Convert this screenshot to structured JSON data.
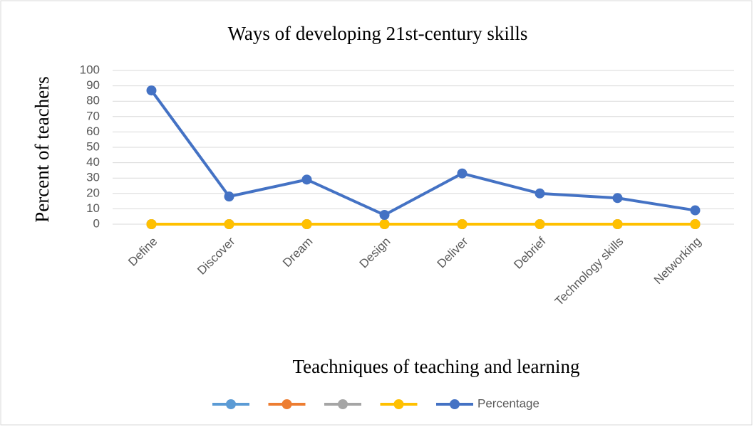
{
  "chart_data": {
    "type": "line",
    "title": "Ways of developing 21st-century skills",
    "x_label": "Teachniques of teaching and learning",
    "y_label": "Percent of teachers",
    "categories": [
      "Define",
      "Discover",
      "Dream",
      "Design",
      "Deliver",
      "Debrief",
      "Technology skills",
      "Networking"
    ],
    "series": [
      {
        "color": "#5B9BD5",
        "values": [
          0,
          0,
          0,
          0,
          0,
          0,
          0,
          0
        ]
      },
      {
        "color": "#ED7D31",
        "values": [
          0,
          0,
          0,
          0,
          0,
          0,
          0,
          0
        ]
      },
      {
        "color": "#A5A5A5",
        "values": [
          0,
          0,
          0,
          0,
          0,
          0,
          0,
          0
        ]
      },
      {
        "color": "#FFC000",
        "values": [
          0,
          0,
          0,
          0,
          0,
          0,
          0,
          0
        ]
      },
      {
        "name": "Percentage",
        "color": "#4472C4",
        "values": [
          87,
          18,
          29,
          6,
          33,
          20,
          17,
          9
        ]
      }
    ],
    "ylim": [
      0,
      100
    ],
    "yticks": [
      0,
      10,
      20,
      30,
      40,
      50,
      60,
      70,
      80,
      90,
      100
    ],
    "grid": true,
    "legend": "bottom"
  }
}
